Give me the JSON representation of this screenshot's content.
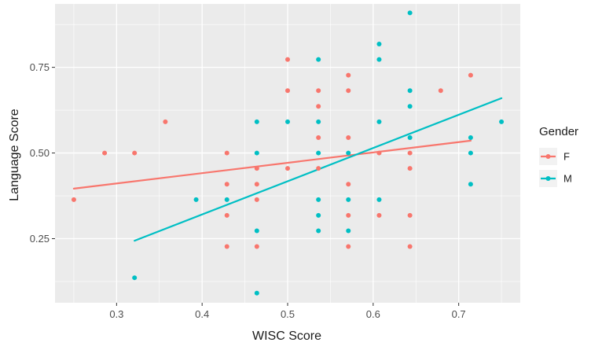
{
  "chart_data": {
    "type": "scatter",
    "xlabel": "WISC Score",
    "ylabel": "Language Score",
    "xlim": [
      0.228,
      0.772
    ],
    "ylim": [
      0.063,
      0.935
    ],
    "x_ticks": [
      0.3,
      0.4,
      0.5,
      0.6,
      0.7
    ],
    "x_tick_labels": [
      "0.3",
      "0.4",
      "0.5",
      "0.6",
      "0.7"
    ],
    "y_ticks": [
      0.25,
      0.5,
      0.75
    ],
    "y_tick_labels": [
      "0.25",
      "0.50",
      "0.75"
    ],
    "grid": true,
    "background": "#ebebeb",
    "legend": {
      "title": "Gender",
      "position": "right",
      "entries": [
        "F",
        "M"
      ]
    },
    "series": [
      {
        "name": "F",
        "color": "#f8766d",
        "points": [
          [
            0.25,
            0.364
          ],
          [
            0.286,
            0.5
          ],
          [
            0.321,
            0.5
          ],
          [
            0.357,
            0.591
          ],
          [
            0.429,
            0.5
          ],
          [
            0.429,
            0.409
          ],
          [
            0.429,
            0.318
          ],
          [
            0.429,
            0.227
          ],
          [
            0.464,
            0.455
          ],
          [
            0.464,
            0.409
          ],
          [
            0.464,
            0.364
          ],
          [
            0.464,
            0.227
          ],
          [
            0.5,
            0.773
          ],
          [
            0.5,
            0.682
          ],
          [
            0.5,
            0.455
          ],
          [
            0.536,
            0.682
          ],
          [
            0.536,
            0.636
          ],
          [
            0.536,
            0.545
          ],
          [
            0.536,
            0.455
          ],
          [
            0.571,
            0.727
          ],
          [
            0.571,
            0.682
          ],
          [
            0.571,
            0.545
          ],
          [
            0.571,
            0.409
          ],
          [
            0.571,
            0.318
          ],
          [
            0.571,
            0.227
          ],
          [
            0.607,
            0.5
          ],
          [
            0.607,
            0.318
          ],
          [
            0.643,
            0.5
          ],
          [
            0.643,
            0.455
          ],
          [
            0.643,
            0.318
          ],
          [
            0.643,
            0.227
          ],
          [
            0.679,
            0.682
          ],
          [
            0.714,
            0.727
          ]
        ],
        "trend": [
          [
            0.25,
            0.396
          ],
          [
            0.714,
            0.536
          ]
        ]
      },
      {
        "name": "M",
        "color": "#00bfc4",
        "points": [
          [
            0.321,
            0.136
          ],
          [
            0.393,
            0.364
          ],
          [
            0.429,
            0.364
          ],
          [
            0.464,
            0.591
          ],
          [
            0.464,
            0.5
          ],
          [
            0.464,
            0.273
          ],
          [
            0.464,
            0.091
          ],
          [
            0.5,
            0.591
          ],
          [
            0.536,
            0.773
          ],
          [
            0.536,
            0.591
          ],
          [
            0.536,
            0.5
          ],
          [
            0.536,
            0.364
          ],
          [
            0.536,
            0.318
          ],
          [
            0.536,
            0.273
          ],
          [
            0.571,
            0.5
          ],
          [
            0.571,
            0.364
          ],
          [
            0.571,
            0.273
          ],
          [
            0.607,
            0.818
          ],
          [
            0.607,
            0.773
          ],
          [
            0.607,
            0.591
          ],
          [
            0.607,
            0.364
          ],
          [
            0.643,
            0.909
          ],
          [
            0.643,
            0.682
          ],
          [
            0.643,
            0.636
          ],
          [
            0.643,
            0.545
          ],
          [
            0.714,
            0.545
          ],
          [
            0.714,
            0.5
          ],
          [
            0.714,
            0.409
          ],
          [
            0.75,
            0.591
          ]
        ],
        "trend": [
          [
            0.321,
            0.244
          ],
          [
            0.75,
            0.66
          ]
        ]
      }
    ]
  }
}
